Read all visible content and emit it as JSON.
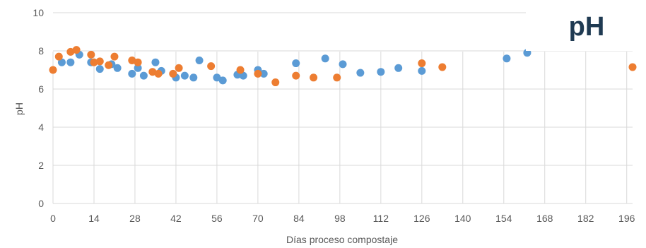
{
  "chart_data": {
    "type": "scatter",
    "title": "pH",
    "xlabel": "Días proceso compostaje",
    "ylabel": "pH",
    "xlim": [
      0,
      200
    ],
    "ylim": [
      0,
      10
    ],
    "grid": true,
    "legend": "none",
    "x_ticks": [
      "0",
      "14",
      "28",
      "42",
      "56",
      "70",
      "84",
      "98",
      "112",
      "126",
      "140",
      "154",
      "168",
      "182",
      "196"
    ],
    "y_ticks": [
      "0",
      "2",
      "4",
      "6",
      "8",
      "10"
    ],
    "colors": [
      "#5b9bd5",
      "#ed7d31"
    ],
    "series": [
      {
        "color": "#5b9bd5",
        "points": [
          [
            3,
            7.4
          ],
          [
            6,
            7.4
          ],
          [
            9,
            7.8
          ],
          [
            13,
            7.4
          ],
          [
            16,
            7.05
          ],
          [
            20,
            7.3
          ],
          [
            22,
            7.1
          ],
          [
            27,
            6.8
          ],
          [
            29,
            7.1
          ],
          [
            31,
            6.7
          ],
          [
            35,
            7.4
          ],
          [
            37,
            6.95
          ],
          [
            42,
            6.6
          ],
          [
            45,
            6.7
          ],
          [
            48,
            6.6
          ],
          [
            50,
            7.5
          ],
          [
            56,
            6.6
          ],
          [
            58,
            6.45
          ],
          [
            63,
            6.75
          ],
          [
            65,
            6.7
          ],
          [
            70,
            7.0
          ],
          [
            72,
            6.8
          ],
          [
            83,
            7.35
          ],
          [
            93,
            7.6
          ],
          [
            99,
            7.3
          ],
          [
            105,
            6.85
          ],
          [
            112,
            6.9
          ],
          [
            118,
            7.1
          ],
          [
            126,
            6.95
          ],
          [
            155,
            7.6
          ],
          [
            162,
            7.9
          ]
        ]
      },
      {
        "color": "#ed7d31",
        "points": [
          [
            0,
            7.0
          ],
          [
            2,
            7.7
          ],
          [
            6,
            7.95
          ],
          [
            8,
            8.05
          ],
          [
            13,
            7.8
          ],
          [
            14,
            7.4
          ],
          [
            16,
            7.45
          ],
          [
            19,
            7.25
          ],
          [
            21,
            7.7
          ],
          [
            27,
            7.5
          ],
          [
            29,
            7.4
          ],
          [
            34,
            6.9
          ],
          [
            36,
            6.8
          ],
          [
            41,
            6.8
          ],
          [
            43,
            7.1
          ],
          [
            54,
            7.2
          ],
          [
            64,
            7.0
          ],
          [
            70,
            6.8
          ],
          [
            76,
            6.35
          ],
          [
            83,
            6.7
          ],
          [
            89,
            6.6
          ],
          [
            97,
            6.6
          ],
          [
            126,
            7.35
          ],
          [
            133,
            7.15
          ],
          [
            198,
            7.15
          ]
        ]
      }
    ]
  }
}
